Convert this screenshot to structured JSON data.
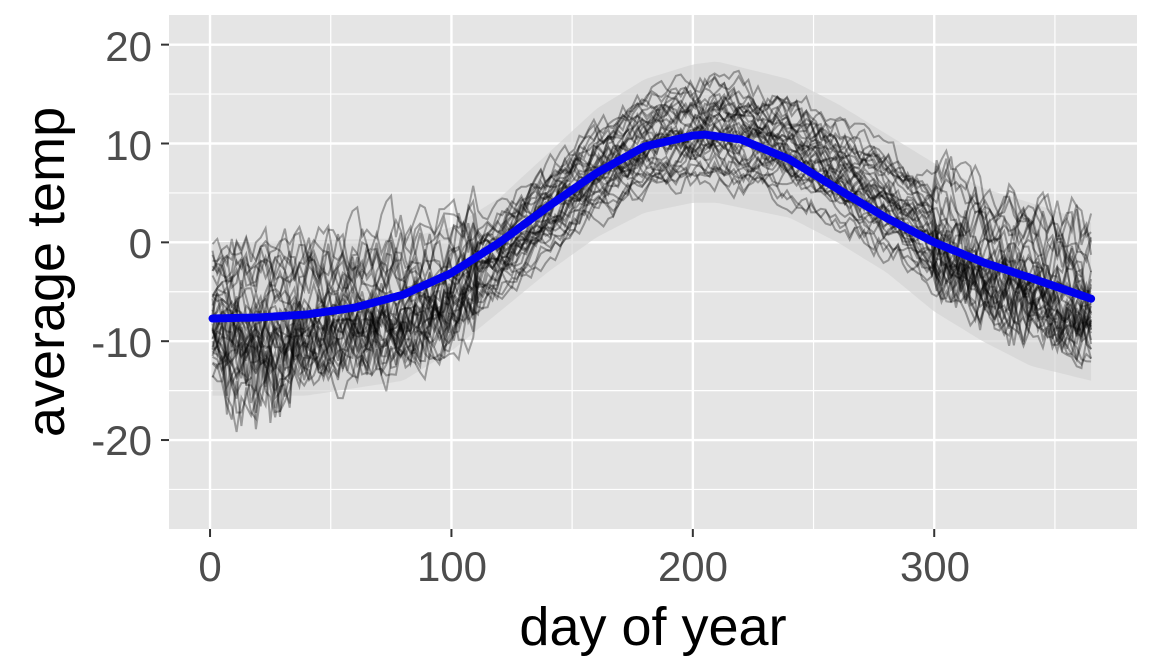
{
  "chart_data": {
    "type": "line",
    "title": "",
    "xlabel": "day of year",
    "ylabel": "average temp",
    "xlim": [
      -17,
      384
    ],
    "ylim": [
      -29,
      23
    ],
    "x_ticks": [
      0,
      100,
      200,
      300
    ],
    "y_ticks": [
      20,
      10,
      0,
      -10,
      -20
    ],
    "x_tick_labels": [
      "0",
      "100",
      "200",
      "300"
    ],
    "y_tick_labels": [
      "20",
      "10",
      "0",
      "-10",
      "-20"
    ],
    "grid": true,
    "legend": "none",
    "colors": {
      "panel_background": "#e5e5e5",
      "grid": "#ffffff",
      "band": "#d3d3d3",
      "raw_lines": "#000000",
      "fit_line": "#0000ee"
    },
    "raw_series": {
      "description": "about 40 yearly daily-temperature traces drawn as thin semi-transparent black lines",
      "count": 40,
      "x_range": [
        1,
        365
      ]
    },
    "series": [
      {
        "role": "mean fit",
        "x": [
          1,
          20,
          40,
          60,
          80,
          100,
          120,
          140,
          160,
          180,
          200,
          205,
          220,
          240,
          260,
          280,
          300,
          320,
          340,
          365
        ],
        "values": [
          -7.7,
          -7.6,
          -7.3,
          -6.6,
          -5.3,
          -3.1,
          0.0,
          3.6,
          7.0,
          9.7,
          10.8,
          10.9,
          10.4,
          8.4,
          5.4,
          2.5,
          0.0,
          -2.0,
          -3.6,
          -5.7
        ]
      },
      {
        "role": "band upper",
        "x": [
          1,
          40,
          80,
          100,
          120,
          140,
          160,
          180,
          200,
          210,
          240,
          260,
          280,
          300,
          320,
          340,
          365
        ],
        "values": [
          0.0,
          0.2,
          0.4,
          1.5,
          4.5,
          9.0,
          13.5,
          16.5,
          18.0,
          18.3,
          16.5,
          14.0,
          11.0,
          8.0,
          5.5,
          4.0,
          2.0
        ]
      },
      {
        "role": "band lower",
        "x": [
          1,
          40,
          80,
          100,
          120,
          140,
          160,
          180,
          200,
          210,
          240,
          260,
          280,
          300,
          320,
          340,
          365
        ],
        "values": [
          -15.5,
          -15.5,
          -14.0,
          -11.0,
          -7.0,
          -3.0,
          0.5,
          3.0,
          4.0,
          4.0,
          2.5,
          0.0,
          -3.0,
          -7.0,
          -10.0,
          -12.5,
          -14.0
        ]
      }
    ]
  }
}
